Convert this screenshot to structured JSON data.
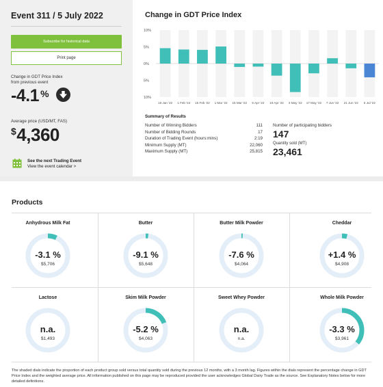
{
  "event": {
    "title": "Event 311 / 5 July 2022",
    "subscribe_label": "Subscribe for historical data",
    "print_label": "Print page",
    "change_label_1": "Change in GDT Price Index",
    "change_label_2": "from previous event",
    "change_value": "-4.1",
    "change_unit": "%",
    "avg_label": "Average price (USD/MT, FAS)",
    "avg_currency": "$",
    "avg_value": "4,360",
    "next_event_l1": "See the next Trading Event",
    "next_event_l2": "View the event calendar >"
  },
  "chart_data": {
    "type": "bar",
    "title": "Change in GDT Price Index",
    "categories": [
      "18 Jan '22",
      "1 Feb '22",
      "15 Feb '22",
      "1 Mar '22",
      "15 Mar '22",
      "5 Apr '22",
      "19 Apr '22",
      "3 May '22",
      "17 May '22",
      "7 Jun '22",
      "21 Jun '22",
      "5 Jul '22"
    ],
    "values": [
      4.6,
      4.2,
      4.1,
      5.1,
      -1.0,
      -0.9,
      -3.6,
      -8.5,
      -2.9,
      1.6,
      -1.4,
      -4.1
    ],
    "ylim": [
      -10,
      10
    ],
    "yticks": [
      "10%",
      "5%",
      "0%",
      "5%",
      "10%"
    ],
    "colors": {
      "positive": "#3fbfb8",
      "negative": "#3fbfb8",
      "latest": "#4a86d4",
      "background_band": "#f3f3f3"
    }
  },
  "summary": {
    "title": "Summary of Results",
    "rows": [
      {
        "k": "Number of Winning Bidders",
        "v": "111"
      },
      {
        "k": "Number of Bidding Rounds",
        "v": "17"
      },
      {
        "k": "Duration of Trading Event (hours:mins)",
        "v": "2:19"
      },
      {
        "k": "Minimum Supply (MT)",
        "v": "22,060"
      },
      {
        "k": "Maximum Supply (MT)",
        "v": "25,815"
      }
    ],
    "bidders_label": "Number of participating bidders",
    "bidders_value": "147",
    "qty_label": "Quantity sold (MT)",
    "qty_value": "23,461"
  },
  "products": {
    "title": "Products",
    "items": [
      {
        "name": "Anhydrous Milk Fat",
        "value": "-3.1 %",
        "price": "$5,706",
        "share": 0.07
      },
      {
        "name": "Butter",
        "value": "-9.1 %",
        "price": "$5,648",
        "share": 0.02
      },
      {
        "name": "Butter Milk Powder",
        "value": "-7.6 %",
        "price": "$4,064",
        "share": 0.01
      },
      {
        "name": "Cheddar",
        "value": "+1.4 %",
        "price": "$4,908",
        "share": 0.04
      },
      {
        "name": "Lactose",
        "value": "n.a.",
        "price": "$1,493",
        "share": 0
      },
      {
        "name": "Skim Milk Powder",
        "value": "-5.2 %",
        "price": "$4,063",
        "share": 0.19
      },
      {
        "name": "Sweet Whey Powder",
        "value": "n.a.",
        "price": "n.a.",
        "share": 0
      },
      {
        "name": "Whole Milk Powder",
        "value": "-3.3 %",
        "price": "$3,961",
        "share": 0.36
      }
    ]
  },
  "footnote": "The shaded dials indicate the proportion of each product group sold versus total quantity sold during the previous 12 months, with a 3 month lag. Figures within the dials represent the percentage change in GDT Price Index and the weighted average price. All information published on this page may be reproduced provided the user acknowledges Global Dairy Trade as the source. See Explanatory Notes below for more detailed definitions."
}
